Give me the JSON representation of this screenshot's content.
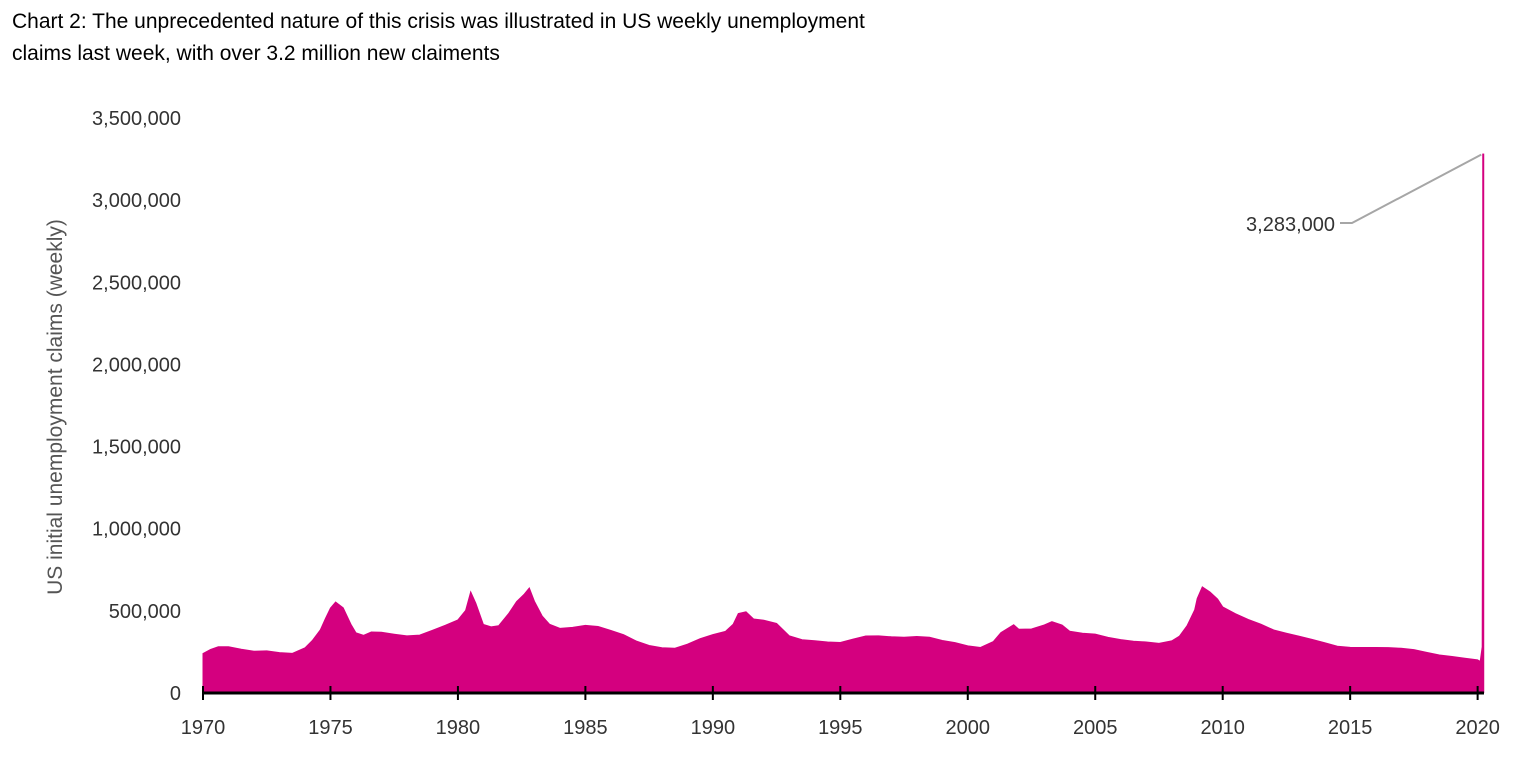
{
  "chart_data": {
    "type": "area",
    "title_lines": [
      "Chart 2: The unprecedented nature of this crisis was illustrated in US weekly unemployment",
      "claims last week, with over 3.2 million new claiments"
    ],
    "xlabel": "",
    "ylabel": "US initial unemployment claims (weekly)",
    "xlim": [
      1970,
      2020.25
    ],
    "ylim": [
      0,
      3500000
    ],
    "y_ticks": [
      0,
      500000,
      1000000,
      1500000,
      2000000,
      2500000,
      3000000,
      3500000
    ],
    "y_tick_labels": [
      "0",
      "500,000",
      "1,000,000",
      "1,500,000",
      "2,000,000",
      "2,500,000",
      "3,000,000",
      "3,500,000"
    ],
    "x_ticks": [
      1970,
      1975,
      1980,
      1985,
      1990,
      1995,
      2000,
      2005,
      2010,
      2015,
      2020
    ],
    "x_tick_labels": [
      "1970",
      "1975",
      "1980",
      "1985",
      "1990",
      "1995",
      "2000",
      "2005",
      "2010",
      "2015",
      "2020"
    ],
    "grid": false,
    "legend": "none",
    "colors": {
      "series": "#D4007F",
      "axis": "#000000",
      "annotation_line": "#A6A6A6"
    },
    "series": [
      {
        "x": [
          1970.0,
          1970.3,
          1970.6,
          1971.0,
          1971.5,
          1972.0,
          1972.5,
          1973.0,
          1973.5,
          1974.0,
          1974.3,
          1974.6,
          1974.8,
          1975.0,
          1975.2,
          1975.5,
          1975.8,
          1976.0,
          1976.3,
          1976.6,
          1977.0,
          1977.5,
          1978.0,
          1978.5,
          1979.0,
          1979.5,
          1980.0,
          1980.3,
          1980.5,
          1980.7,
          1981.0,
          1981.3,
          1981.6,
          1982.0,
          1982.3,
          1982.6,
          1982.8,
          1983.0,
          1983.3,
          1983.6,
          1984.0,
          1984.5,
          1985.0,
          1985.5,
          1986.0,
          1986.5,
          1987.0,
          1987.5,
          1988.0,
          1988.5,
          1989.0,
          1989.5,
          1990.0,
          1990.5,
          1990.8,
          1991.0,
          1991.3,
          1991.6,
          1992.0,
          1992.5,
          1993.0,
          1993.5,
          1994.0,
          1994.5,
          1995.0,
          1995.5,
          1996.0,
          1996.5,
          1997.0,
          1997.5,
          1998.0,
          1998.5,
          1999.0,
          1999.5,
          2000.0,
          2000.5,
          2001.0,
          2001.3,
          2001.8,
          2002.0,
          2002.5,
          2003.0,
          2003.3,
          2003.7,
          2004.0,
          2004.5,
          2005.0,
          2005.5,
          2006.0,
          2006.5,
          2007.0,
          2007.5,
          2008.0,
          2008.3,
          2008.6,
          2008.9,
          2009.0,
          2009.2,
          2009.5,
          2009.8,
          2010.0,
          2010.5,
          2011.0,
          2011.5,
          2012.0,
          2012.5,
          2013.0,
          2013.5,
          2014.0,
          2014.5,
          2015.0,
          2015.5,
          2016.0,
          2016.5,
          2017.0,
          2017.5,
          2018.0,
          2018.5,
          2019.0,
          2019.5,
          2020.0,
          2020.1,
          2020.18,
          2020.22
        ],
        "values": [
          240000,
          275000,
          300000,
          305000,
          290000,
          275000,
          270000,
          250000,
          235000,
          260000,
          300000,
          360000,
          430000,
          500000,
          545000,
          520000,
          430000,
          385000,
          375000,
          395000,
          390000,
          370000,
          350000,
          345000,
          365000,
          390000,
          420000,
          480000,
          600000,
          540000,
          420000,
          415000,
          430000,
          510000,
          580000,
          620000,
          650000,
          560000,
          460000,
          400000,
          370000,
          375000,
          390000,
          390000,
          375000,
          360000,
          330000,
          310000,
          300000,
          295000,
          315000,
          340000,
          355000,
          365000,
          400000,
          460000,
          470000,
          430000,
          430000,
          420000,
          355000,
          340000,
          340000,
          335000,
          330000,
          345000,
          355000,
          345000,
          330000,
          320000,
          320000,
          315000,
          300000,
          295000,
          285000,
          285000,
          330000,
          390000,
          440000,
          410000,
          405000,
          420000,
          430000,
          400000,
          355000,
          340000,
          335000,
          320000,
          315000,
          315000,
          320000,
          320000,
          340000,
          370000,
          430000,
          520000,
          580000,
          640000,
          600000,
          550000,
          500000,
          460000,
          430000,
          410000,
          385000,
          375000,
          365000,
          350000,
          330000,
          305000,
          290000,
          280000,
          270000,
          260000,
          250000,
          240000,
          225000,
          215000,
          215000,
          215000,
          215000,
          212000,
          280000,
          3283000
        ]
      }
    ],
    "annotation": {
      "label": "3,283,000",
      "x": 2020.22,
      "value": 3283000
    }
  }
}
